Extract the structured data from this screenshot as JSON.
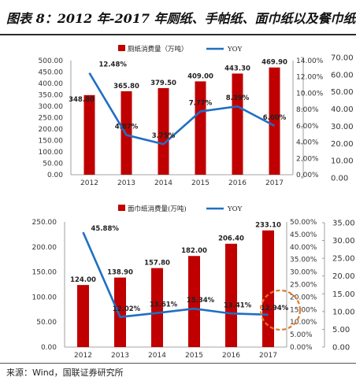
{
  "title": "图表 8：2012 年-2017 年厕纸、手帕纸、面巾纸以及餐巾纸",
  "source": "来源：Wind，国联证券研究所",
  "colors": {
    "bar": "#c00000",
    "line": "#1f6fc4",
    "circle": "#e07b2a"
  },
  "chart_data": [
    {
      "type": "bar",
      "categories": [
        "2012",
        "2013",
        "2014",
        "2015",
        "2016",
        "2017"
      ],
      "series": [
        {
          "name": "厕纸消费量（万吨）",
          "kind": "bar",
          "axis": "left",
          "values": [
            348.8,
            365.8,
            379.5,
            409.0,
            443.3,
            469.9
          ],
          "labels": [
            "348.80",
            "365.80",
            "379.50",
            "409.00",
            "443.30",
            "469.90"
          ]
        },
        {
          "name": "YOY",
          "kind": "line",
          "axis": "right",
          "values": [
            12.48,
            4.87,
            3.75,
            7.77,
            8.39,
            6.0
          ],
          "labels": [
            "12.48%",
            "4.87%",
            "3.75%",
            "7.77%",
            "8.39%",
            "6.00%"
          ]
        }
      ],
      "left_ticks": [
        "0.00",
        "50.00",
        "100.00",
        "150.00",
        "200.00",
        "250.00",
        "300.00",
        "350.00",
        "400.00",
        "450.00",
        "500.00"
      ],
      "right_ticks": [
        "0.00%",
        "2.00%",
        "4.00%",
        "6.00%",
        "8.00%",
        "10.00%",
        "12.00%",
        "14.00%"
      ],
      "far_ticks": [
        "0.00",
        "10.00",
        "20.00",
        "30.00",
        "40.00",
        "50.00",
        "60.00",
        "70.00"
      ],
      "ylim_left": [
        0,
        500
      ],
      "ylim_right": [
        0,
        14
      ],
      "ylim_far": [
        0,
        70
      ],
      "legend_position": "top",
      "grid": false
    },
    {
      "type": "bar",
      "categories": [
        "2012",
        "2013",
        "2014",
        "2015",
        "2016",
        "2017"
      ],
      "series": [
        {
          "name": "面巾纸消费量(万吨)",
          "kind": "bar",
          "axis": "left",
          "values": [
            124.0,
            138.9,
            157.8,
            182.0,
            206.4,
            233.1
          ],
          "labels": [
            "124.00",
            "138.90",
            "157.80",
            "182.00",
            "206.40",
            "233.10"
          ]
        },
        {
          "name": "YOY",
          "kind": "line",
          "axis": "right",
          "values": [
            45.88,
            12.02,
            13.61,
            15.34,
            13.41,
            12.94
          ],
          "labels": [
            "45.88%",
            "12.02%",
            "13.61%",
            "15.34%",
            "13.41%",
            "12.94%"
          ]
        }
      ],
      "left_ticks": [
        "0.00",
        "50.00",
        "100.00",
        "150.00",
        "200.00",
        "250.00"
      ],
      "right_ticks": [
        "0.00%",
        "5.00%",
        "10.00%",
        "15.00%",
        "20.00%",
        "25.00%",
        "30.00%",
        "35.00%",
        "40.00%",
        "45.00%",
        "50.00%"
      ],
      "far_ticks": [
        "0.00",
        "5.00",
        "10.00",
        "15.00",
        "20.00",
        "25.00",
        "30.00",
        "35.00"
      ],
      "ylim_left": [
        0,
        250
      ],
      "ylim_right": [
        0,
        50
      ],
      "ylim_far": [
        0,
        35
      ],
      "legend_position": "top",
      "grid": false
    }
  ]
}
